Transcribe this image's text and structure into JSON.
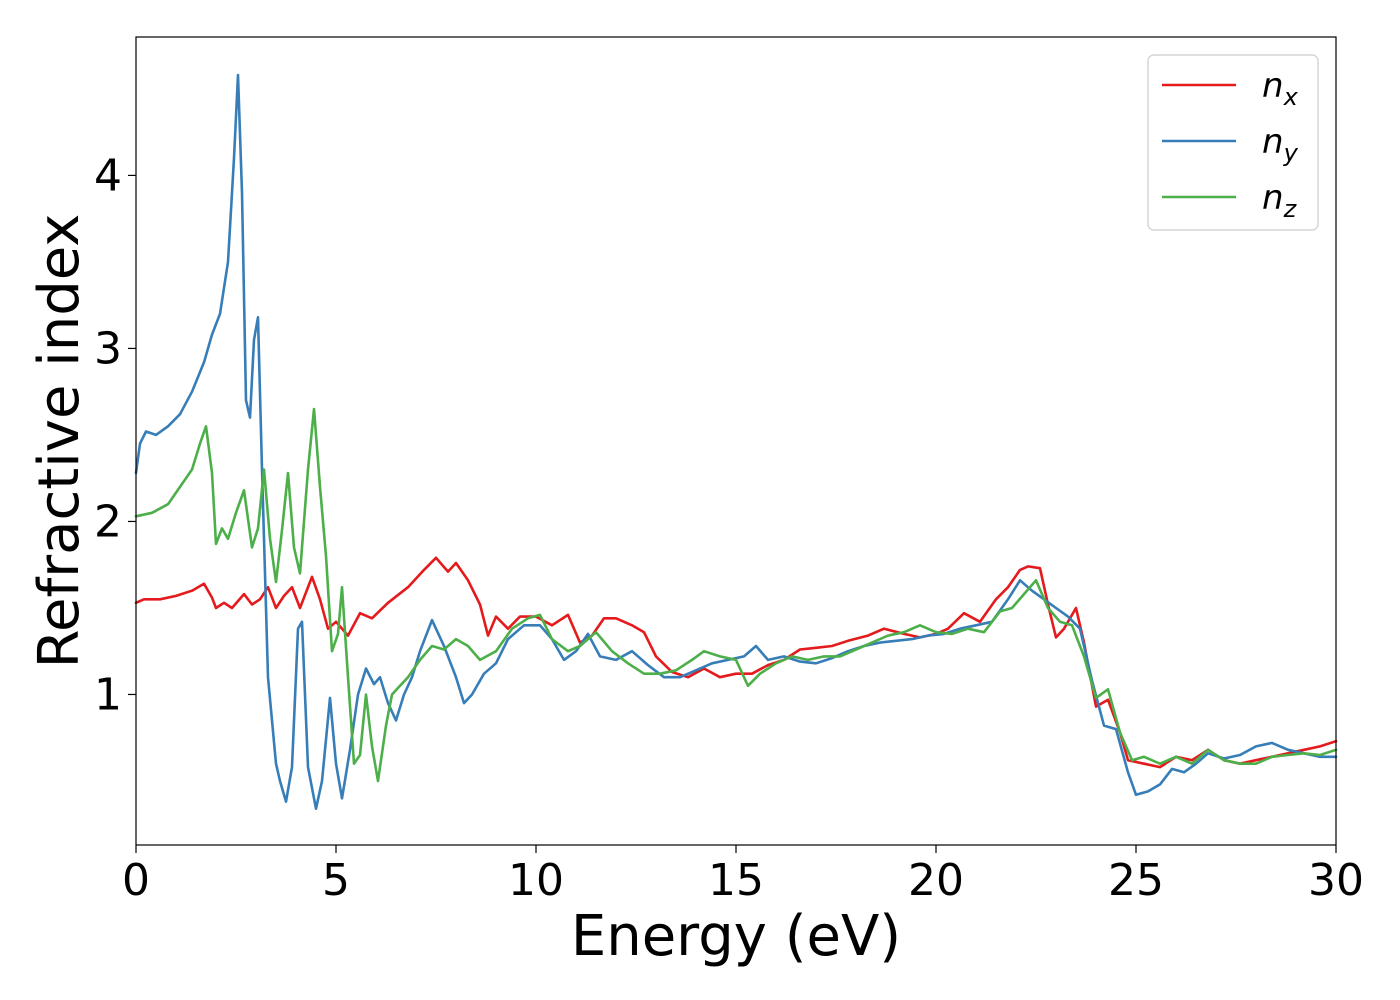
{
  "chart_data": {
    "type": "line",
    "xlabel": "Energy (eV)",
    "ylabel": "Refractive index",
    "xlim": [
      0,
      30
    ],
    "ylim": [
      0.13,
      4.8
    ],
    "xticks": [
      0,
      5,
      10,
      15,
      20,
      25,
      30
    ],
    "yticks": [
      1,
      2,
      3,
      4
    ],
    "grid": false,
    "legend_position": "top-right",
    "series": [
      {
        "name": "n_x",
        "legend_main": "n",
        "legend_sub": "x",
        "color": "#e41a1c",
        "points": [
          [
            0,
            1.53
          ],
          [
            0.2,
            1.55
          ],
          [
            0.6,
            1.55
          ],
          [
            1.0,
            1.57
          ],
          [
            1.4,
            1.6
          ],
          [
            1.7,
            1.64
          ],
          [
            1.9,
            1.56
          ],
          [
            2.0,
            1.5
          ],
          [
            2.2,
            1.53
          ],
          [
            2.4,
            1.5
          ],
          [
            2.7,
            1.58
          ],
          [
            2.9,
            1.52
          ],
          [
            3.1,
            1.55
          ],
          [
            3.3,
            1.62
          ],
          [
            3.5,
            1.5
          ],
          [
            3.7,
            1.57
          ],
          [
            3.9,
            1.62
          ],
          [
            4.1,
            1.5
          ],
          [
            4.4,
            1.68
          ],
          [
            4.6,
            1.55
          ],
          [
            4.8,
            1.38
          ],
          [
            5.0,
            1.42
          ],
          [
            5.3,
            1.34
          ],
          [
            5.6,
            1.47
          ],
          [
            5.9,
            1.44
          ],
          [
            6.3,
            1.53
          ],
          [
            6.8,
            1.62
          ],
          [
            7.2,
            1.72
          ],
          [
            7.5,
            1.79
          ],
          [
            7.8,
            1.71
          ],
          [
            8.0,
            1.76
          ],
          [
            8.3,
            1.66
          ],
          [
            8.6,
            1.52
          ],
          [
            8.8,
            1.34
          ],
          [
            9.0,
            1.45
          ],
          [
            9.3,
            1.38
          ],
          [
            9.6,
            1.45
          ],
          [
            10.0,
            1.45
          ],
          [
            10.4,
            1.4
          ],
          [
            10.8,
            1.46
          ],
          [
            11.1,
            1.3
          ],
          [
            11.4,
            1.34
          ],
          [
            11.7,
            1.44
          ],
          [
            12.0,
            1.44
          ],
          [
            12.4,
            1.4
          ],
          [
            12.7,
            1.36
          ],
          [
            13.0,
            1.22
          ],
          [
            13.4,
            1.13
          ],
          [
            13.8,
            1.1
          ],
          [
            14.2,
            1.15
          ],
          [
            14.6,
            1.1
          ],
          [
            15.0,
            1.12
          ],
          [
            15.4,
            1.12
          ],
          [
            15.8,
            1.17
          ],
          [
            16.2,
            1.2
          ],
          [
            16.6,
            1.26
          ],
          [
            17.0,
            1.27
          ],
          [
            17.4,
            1.28
          ],
          [
            17.8,
            1.31
          ],
          [
            18.3,
            1.34
          ],
          [
            18.7,
            1.38
          ],
          [
            19.2,
            1.35
          ],
          [
            19.6,
            1.33
          ],
          [
            20.0,
            1.35
          ],
          [
            20.3,
            1.38
          ],
          [
            20.7,
            1.47
          ],
          [
            21.1,
            1.42
          ],
          [
            21.5,
            1.55
          ],
          [
            21.8,
            1.62
          ],
          [
            22.1,
            1.72
          ],
          [
            22.3,
            1.74
          ],
          [
            22.6,
            1.73
          ],
          [
            22.8,
            1.52
          ],
          [
            23.0,
            1.33
          ],
          [
            23.2,
            1.38
          ],
          [
            23.5,
            1.5
          ],
          [
            23.7,
            1.3
          ],
          [
            24.0,
            0.93
          ],
          [
            24.3,
            0.97
          ],
          [
            24.6,
            0.78
          ],
          [
            24.8,
            0.62
          ],
          [
            25.2,
            0.6
          ],
          [
            25.6,
            0.58
          ],
          [
            26.0,
            0.64
          ],
          [
            26.4,
            0.62
          ],
          [
            26.8,
            0.68
          ],
          [
            27.2,
            0.62
          ],
          [
            27.6,
            0.6
          ],
          [
            28.0,
            0.62
          ],
          [
            28.4,
            0.64
          ],
          [
            28.8,
            0.66
          ],
          [
            29.2,
            0.68
          ],
          [
            29.6,
            0.7
          ],
          [
            30.0,
            0.73
          ]
        ]
      },
      {
        "name": "n_y",
        "legend_main": "n",
        "legend_sub": "y",
        "color": "#377eb8",
        "points": [
          [
            0,
            2.28
          ],
          [
            0.1,
            2.45
          ],
          [
            0.25,
            2.52
          ],
          [
            0.5,
            2.5
          ],
          [
            0.8,
            2.55
          ],
          [
            1.1,
            2.62
          ],
          [
            1.4,
            2.75
          ],
          [
            1.7,
            2.92
          ],
          [
            1.9,
            3.08
          ],
          [
            2.1,
            3.2
          ],
          [
            2.3,
            3.5
          ],
          [
            2.45,
            4.1
          ],
          [
            2.55,
            4.58
          ],
          [
            2.65,
            3.9
          ],
          [
            2.75,
            2.7
          ],
          [
            2.85,
            2.6
          ],
          [
            2.95,
            3.05
          ],
          [
            3.05,
            3.18
          ],
          [
            3.15,
            2.3
          ],
          [
            3.3,
            1.1
          ],
          [
            3.5,
            0.6
          ],
          [
            3.6,
            0.5
          ],
          [
            3.75,
            0.38
          ],
          [
            3.9,
            0.58
          ],
          [
            4.05,
            1.38
          ],
          [
            4.15,
            1.42
          ],
          [
            4.3,
            0.58
          ],
          [
            4.5,
            0.34
          ],
          [
            4.65,
            0.5
          ],
          [
            4.85,
            0.98
          ],
          [
            5.0,
            0.6
          ],
          [
            5.15,
            0.4
          ],
          [
            5.35,
            0.68
          ],
          [
            5.55,
            1.0
          ],
          [
            5.75,
            1.15
          ],
          [
            5.95,
            1.06
          ],
          [
            6.1,
            1.1
          ],
          [
            6.3,
            0.95
          ],
          [
            6.5,
            0.85
          ],
          [
            6.7,
            1.0
          ],
          [
            6.9,
            1.1
          ],
          [
            7.1,
            1.25
          ],
          [
            7.4,
            1.43
          ],
          [
            7.7,
            1.28
          ],
          [
            8.0,
            1.1
          ],
          [
            8.2,
            0.95
          ],
          [
            8.4,
            1.0
          ],
          [
            8.7,
            1.12
          ],
          [
            9.0,
            1.18
          ],
          [
            9.3,
            1.32
          ],
          [
            9.7,
            1.4
          ],
          [
            10.1,
            1.4
          ],
          [
            10.4,
            1.32
          ],
          [
            10.7,
            1.2
          ],
          [
            11.0,
            1.25
          ],
          [
            11.3,
            1.35
          ],
          [
            11.6,
            1.22
          ],
          [
            12.0,
            1.2
          ],
          [
            12.4,
            1.25
          ],
          [
            12.8,
            1.17
          ],
          [
            13.2,
            1.1
          ],
          [
            13.6,
            1.1
          ],
          [
            14.0,
            1.14
          ],
          [
            14.4,
            1.18
          ],
          [
            14.8,
            1.2
          ],
          [
            15.2,
            1.22
          ],
          [
            15.5,
            1.28
          ],
          [
            15.8,
            1.2
          ],
          [
            16.2,
            1.22
          ],
          [
            16.6,
            1.19
          ],
          [
            17.0,
            1.18
          ],
          [
            17.4,
            1.21
          ],
          [
            17.8,
            1.25
          ],
          [
            18.2,
            1.28
          ],
          [
            18.6,
            1.3
          ],
          [
            19.0,
            1.31
          ],
          [
            19.4,
            1.32
          ],
          [
            19.8,
            1.34
          ],
          [
            20.2,
            1.35
          ],
          [
            20.6,
            1.38
          ],
          [
            21.0,
            1.4
          ],
          [
            21.4,
            1.42
          ],
          [
            21.8,
            1.55
          ],
          [
            22.1,
            1.66
          ],
          [
            22.4,
            1.6
          ],
          [
            22.7,
            1.55
          ],
          [
            23.0,
            1.5
          ],
          [
            23.3,
            1.45
          ],
          [
            23.6,
            1.38
          ],
          [
            23.9,
            1.08
          ],
          [
            24.2,
            0.82
          ],
          [
            24.5,
            0.8
          ],
          [
            24.8,
            0.55
          ],
          [
            25.0,
            0.42
          ],
          [
            25.3,
            0.44
          ],
          [
            25.6,
            0.48
          ],
          [
            25.9,
            0.57
          ],
          [
            26.2,
            0.55
          ],
          [
            26.5,
            0.6
          ],
          [
            26.8,
            0.66
          ],
          [
            27.2,
            0.63
          ],
          [
            27.6,
            0.65
          ],
          [
            28.0,
            0.7
          ],
          [
            28.4,
            0.72
          ],
          [
            28.8,
            0.68
          ],
          [
            29.2,
            0.66
          ],
          [
            29.6,
            0.64
          ],
          [
            30.0,
            0.64
          ]
        ]
      },
      {
        "name": "n_z",
        "legend_main": "n",
        "legend_sub": "z",
        "color": "#4daf4a",
        "points": [
          [
            0,
            2.03
          ],
          [
            0.4,
            2.05
          ],
          [
            0.8,
            2.1
          ],
          [
            1.1,
            2.2
          ],
          [
            1.4,
            2.3
          ],
          [
            1.6,
            2.45
          ],
          [
            1.75,
            2.55
          ],
          [
            1.9,
            2.28
          ],
          [
            2.0,
            1.87
          ],
          [
            2.15,
            1.96
          ],
          [
            2.3,
            1.9
          ],
          [
            2.5,
            2.05
          ],
          [
            2.7,
            2.18
          ],
          [
            2.9,
            1.85
          ],
          [
            3.05,
            1.96
          ],
          [
            3.2,
            2.3
          ],
          [
            3.35,
            1.9
          ],
          [
            3.5,
            1.65
          ],
          [
            3.65,
            1.95
          ],
          [
            3.8,
            2.28
          ],
          [
            3.95,
            1.85
          ],
          [
            4.1,
            1.7
          ],
          [
            4.3,
            2.3
          ],
          [
            4.45,
            2.65
          ],
          [
            4.6,
            2.2
          ],
          [
            4.75,
            1.8
          ],
          [
            4.9,
            1.25
          ],
          [
            5.05,
            1.35
          ],
          [
            5.15,
            1.62
          ],
          [
            5.3,
            1.1
          ],
          [
            5.45,
            0.6
          ],
          [
            5.6,
            0.65
          ],
          [
            5.75,
            1.0
          ],
          [
            5.9,
            0.7
          ],
          [
            6.05,
            0.5
          ],
          [
            6.25,
            0.82
          ],
          [
            6.4,
            1.0
          ],
          [
            6.6,
            1.05
          ],
          [
            6.8,
            1.1
          ],
          [
            7.1,
            1.2
          ],
          [
            7.4,
            1.28
          ],
          [
            7.7,
            1.26
          ],
          [
            8.0,
            1.32
          ],
          [
            8.3,
            1.28
          ],
          [
            8.6,
            1.2
          ],
          [
            9.0,
            1.25
          ],
          [
            9.4,
            1.38
          ],
          [
            9.8,
            1.44
          ],
          [
            10.1,
            1.46
          ],
          [
            10.4,
            1.32
          ],
          [
            10.8,
            1.25
          ],
          [
            11.1,
            1.28
          ],
          [
            11.5,
            1.36
          ],
          [
            11.9,
            1.25
          ],
          [
            12.3,
            1.18
          ],
          [
            12.7,
            1.12
          ],
          [
            13.1,
            1.12
          ],
          [
            13.5,
            1.14
          ],
          [
            13.9,
            1.2
          ],
          [
            14.2,
            1.25
          ],
          [
            14.6,
            1.22
          ],
          [
            15.0,
            1.2
          ],
          [
            15.3,
            1.05
          ],
          [
            15.6,
            1.12
          ],
          [
            16.0,
            1.18
          ],
          [
            16.4,
            1.22
          ],
          [
            16.8,
            1.2
          ],
          [
            17.2,
            1.22
          ],
          [
            17.6,
            1.22
          ],
          [
            18.0,
            1.26
          ],
          [
            18.4,
            1.3
          ],
          [
            18.8,
            1.34
          ],
          [
            19.2,
            1.36
          ],
          [
            19.6,
            1.4
          ],
          [
            20.0,
            1.36
          ],
          [
            20.4,
            1.35
          ],
          [
            20.8,
            1.38
          ],
          [
            21.2,
            1.36
          ],
          [
            21.6,
            1.48
          ],
          [
            21.9,
            1.5
          ],
          [
            22.2,
            1.58
          ],
          [
            22.5,
            1.66
          ],
          [
            22.8,
            1.5
          ],
          [
            23.1,
            1.42
          ],
          [
            23.4,
            1.4
          ],
          [
            23.7,
            1.22
          ],
          [
            24.0,
            0.98
          ],
          [
            24.3,
            1.03
          ],
          [
            24.6,
            0.78
          ],
          [
            24.9,
            0.62
          ],
          [
            25.2,
            0.64
          ],
          [
            25.6,
            0.6
          ],
          [
            26.0,
            0.64
          ],
          [
            26.4,
            0.6
          ],
          [
            26.8,
            0.68
          ],
          [
            27.2,
            0.62
          ],
          [
            27.6,
            0.6
          ],
          [
            28.0,
            0.6
          ],
          [
            28.4,
            0.64
          ],
          [
            28.8,
            0.65
          ],
          [
            29.2,
            0.66
          ],
          [
            29.6,
            0.65
          ],
          [
            30.0,
            0.68
          ]
        ]
      }
    ]
  }
}
